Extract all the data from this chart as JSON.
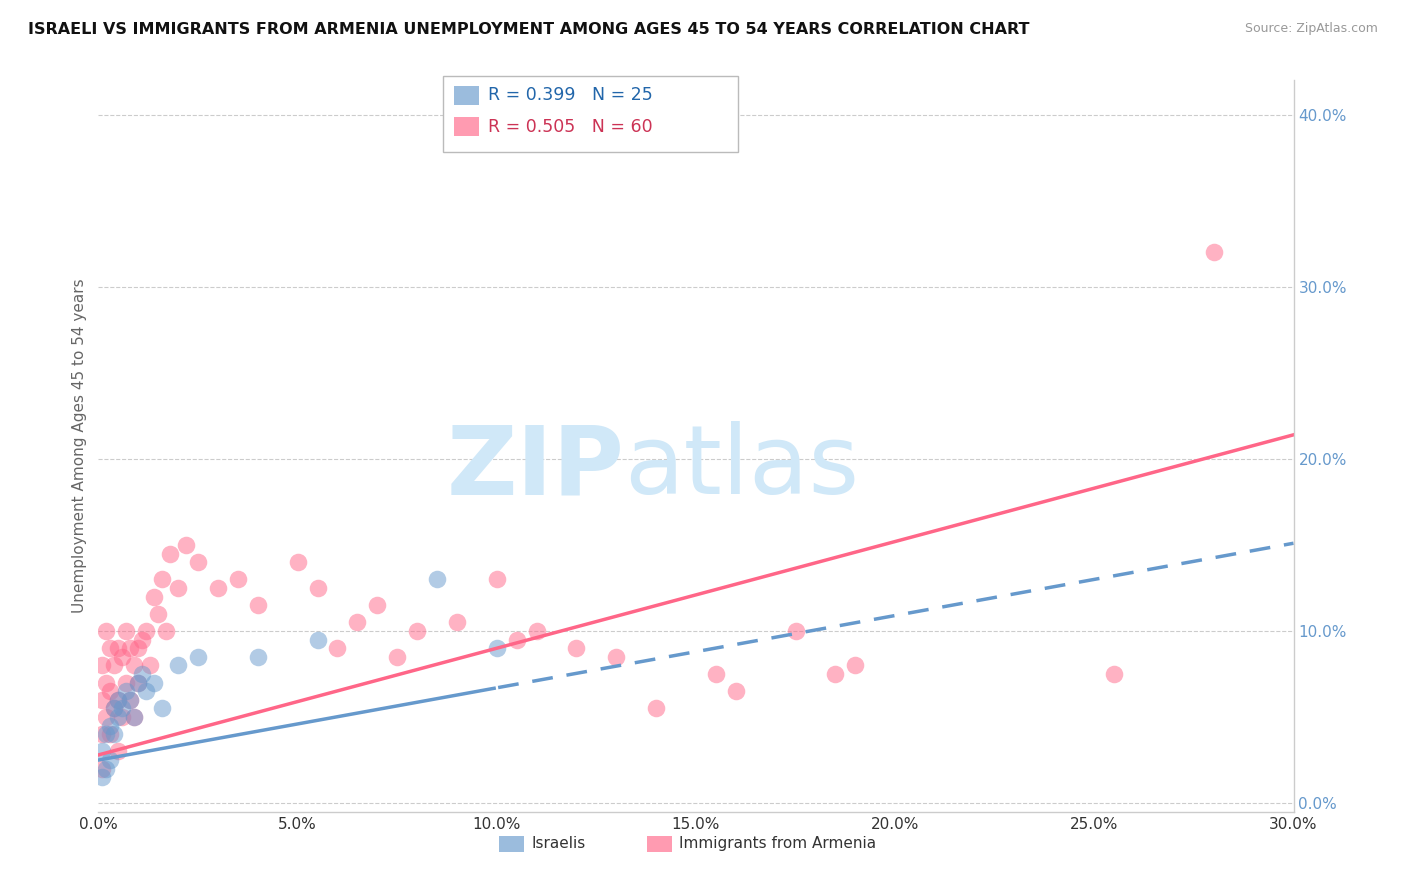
{
  "title": "ISRAELI VS IMMIGRANTS FROM ARMENIA UNEMPLOYMENT AMONG AGES 45 TO 54 YEARS CORRELATION CHART",
  "source": "Source: ZipAtlas.com",
  "ylabel": "Unemployment Among Ages 45 to 54 years",
  "xlim": [
    0.0,
    0.3
  ],
  "ylim": [
    -0.005,
    0.42
  ],
  "watermark_zip": "ZIP",
  "watermark_atlas": "atlas",
  "legend_israelis": "Israelis",
  "legend_armenia": "Immigrants from Armenia",
  "legend_r_israelis": "R = 0.399",
  "legend_n_israelis": "N = 25",
  "legend_r_armenia": "R = 0.505",
  "legend_n_armenia": "N = 60",
  "israelis_color": "#6699CC",
  "armenia_color": "#FF6688",
  "israelis_x": [
    0.001,
    0.001,
    0.002,
    0.002,
    0.003,
    0.003,
    0.004,
    0.004,
    0.005,
    0.005,
    0.006,
    0.007,
    0.008,
    0.009,
    0.01,
    0.011,
    0.012,
    0.014,
    0.016,
    0.02,
    0.025,
    0.04,
    0.055,
    0.085,
    0.1
  ],
  "israelis_y": [
    0.015,
    0.03,
    0.02,
    0.04,
    0.025,
    0.045,
    0.04,
    0.055,
    0.05,
    0.06,
    0.055,
    0.065,
    0.06,
    0.05,
    0.07,
    0.075,
    0.065,
    0.07,
    0.055,
    0.08,
    0.085,
    0.085,
    0.095,
    0.13,
    0.09
  ],
  "armenia_x": [
    0.001,
    0.001,
    0.001,
    0.001,
    0.002,
    0.002,
    0.002,
    0.003,
    0.003,
    0.003,
    0.004,
    0.004,
    0.005,
    0.005,
    0.005,
    0.006,
    0.006,
    0.007,
    0.007,
    0.008,
    0.008,
    0.009,
    0.009,
    0.01,
    0.01,
    0.011,
    0.012,
    0.013,
    0.014,
    0.015,
    0.016,
    0.017,
    0.018,
    0.02,
    0.022,
    0.025,
    0.03,
    0.035,
    0.04,
    0.05,
    0.055,
    0.06,
    0.065,
    0.07,
    0.075,
    0.08,
    0.09,
    0.1,
    0.105,
    0.11,
    0.12,
    0.13,
    0.14,
    0.155,
    0.16,
    0.175,
    0.185,
    0.19,
    0.255,
    0.28
  ],
  "armenia_y": [
    0.02,
    0.04,
    0.06,
    0.08,
    0.05,
    0.07,
    0.1,
    0.04,
    0.065,
    0.09,
    0.055,
    0.08,
    0.03,
    0.06,
    0.09,
    0.05,
    0.085,
    0.07,
    0.1,
    0.06,
    0.09,
    0.05,
    0.08,
    0.07,
    0.09,
    0.095,
    0.1,
    0.08,
    0.12,
    0.11,
    0.13,
    0.1,
    0.145,
    0.125,
    0.15,
    0.14,
    0.125,
    0.13,
    0.115,
    0.14,
    0.125,
    0.09,
    0.105,
    0.115,
    0.085,
    0.1,
    0.105,
    0.13,
    0.095,
    0.1,
    0.09,
    0.085,
    0.055,
    0.075,
    0.065,
    0.1,
    0.075,
    0.08,
    0.075,
    0.32
  ],
  "xtick_labels": [
    "0.0%",
    "5.0%",
    "10.0%",
    "15.0%",
    "20.0%",
    "25.0%",
    "30.0%"
  ],
  "xtick_vals": [
    0.0,
    0.05,
    0.1,
    0.15,
    0.2,
    0.25,
    0.3
  ],
  "ytick_labels": [
    "0.0%",
    "10.0%",
    "20.0%",
    "30.0%",
    "40.0%"
  ],
  "ytick_vals": [
    0.0,
    0.1,
    0.2,
    0.3,
    0.4
  ],
  "background_color": "#FFFFFF",
  "grid_color": "#CCCCCC",
  "israelis_trend_solid_end": 0.1,
  "israelis_trend_start": 0.0,
  "israelis_trend_end": 0.3,
  "armenia_trend_start": 0.0,
  "armenia_trend_end": 0.3
}
